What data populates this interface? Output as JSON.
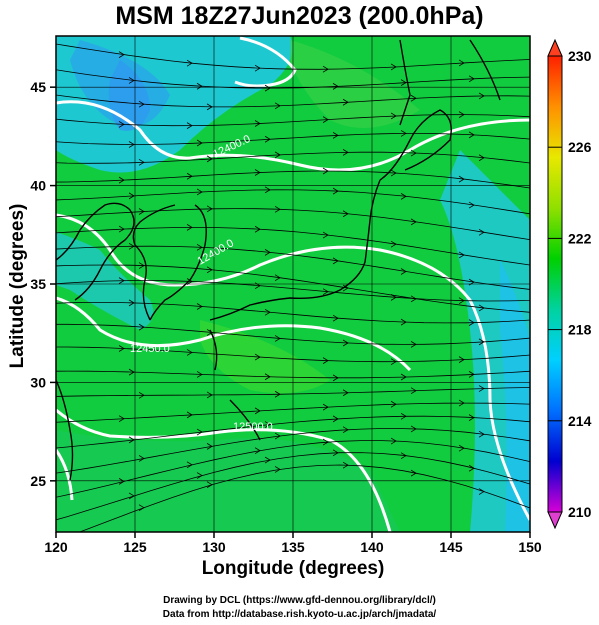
{
  "title": "MSM 18Z27Jun2023 (200.0hPa)",
  "axes": {
    "xlabel": "Longitude (degrees)",
    "ylabel": "Latitude  (degrees)",
    "xticks": [
      "120",
      "125",
      "130",
      "135",
      "140",
      "145",
      "150"
    ],
    "yticks": [
      "25",
      "30",
      "35",
      "40",
      "45"
    ]
  },
  "colorbar": {
    "ticks": [
      "210",
      "214",
      "218",
      "222",
      "226",
      "230"
    ],
    "range": [
      210,
      230
    ],
    "stops": [
      "#d600d6",
      "#0000d0",
      "#0070ff",
      "#00d0ff",
      "#00d2a0",
      "#00d000",
      "#90e000",
      "#e8e800",
      "#ff9000",
      "#ff2000"
    ]
  },
  "contour_labels": [
    "12400.0",
    "12400.0",
    "12450.0",
    "12500.0"
  ],
  "credits": {
    "line1": "Drawing by DCL (https://www.gfd-dennou.org/library/dcl/)",
    "line2": "Data from http://database.rish.kyoto-u.ac.jp/arch/jmadata/"
  },
  "chart_data": {
    "type": "heatmap",
    "title": "MSM 18Z27Jun2023 (200.0hPa)",
    "xlabel": "Longitude (degrees)",
    "ylabel": "Latitude  (degrees)",
    "xlim": [
      120,
      150
    ],
    "ylim": [
      22.4,
      47.6
    ],
    "color_range": [
      210,
      230
    ],
    "contour_values": [
      12400.0,
      12450.0,
      12500.0
    ],
    "grid": true
  }
}
